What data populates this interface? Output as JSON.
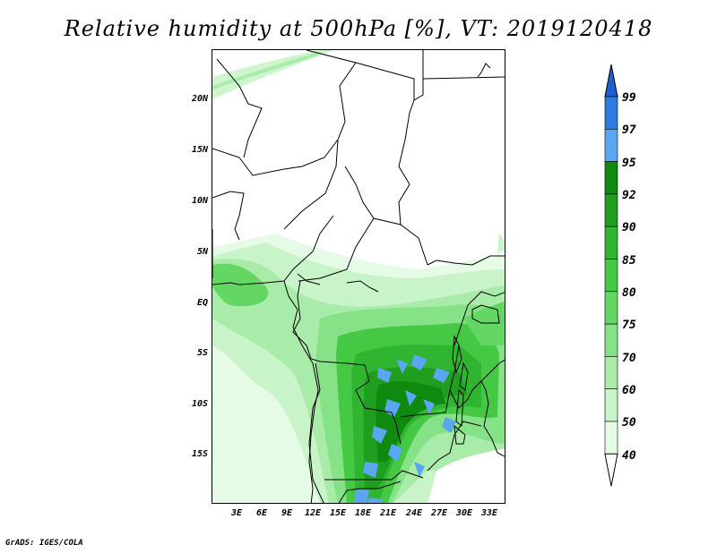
{
  "title": "Relative humidity at 500hPa [%], VT: 2019120418",
  "credit": "GrADS: IGES/COLA",
  "lat_ticks": [
    "20N",
    "15N",
    "10N",
    "5N",
    "EQ",
    "5S",
    "10S",
    "15S"
  ],
  "lon_ticks": [
    "3E",
    "6E",
    "9E",
    "12E",
    "15E",
    "18E",
    "21E",
    "24E",
    "27E",
    "30E",
    "33E"
  ],
  "colorbar": {
    "labels": [
      "99",
      "97",
      "95",
      "92",
      "90",
      "85",
      "80",
      "75",
      "70",
      "60",
      "50",
      "40"
    ],
    "colors": [
      "#1f5fcf",
      "#2b7be0",
      "#5aa6f0",
      "#0f8a0f",
      "#1f9e1f",
      "#2fb52f",
      "#45c945",
      "#63d663",
      "#86e286",
      "#a9eca9",
      "#c9f4c9",
      "#e6fbe6"
    ]
  }
}
